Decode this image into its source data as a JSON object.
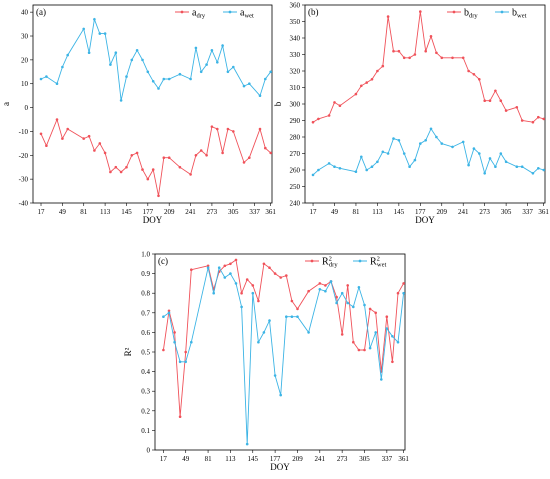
{
  "chart_data": [
    {
      "type": "line",
      "panel_label": "(a)",
      "xlabel": "DOY",
      "ylabel": "a",
      "xticks": [
        17,
        49,
        81,
        113,
        145,
        177,
        209,
        241,
        273,
        305,
        337,
        361
      ],
      "xlim": [
        5,
        363
      ],
      "yticks": [
        -40,
        -30,
        -20,
        -10,
        0,
        10,
        20,
        30,
        40
      ],
      "ylim": [
        -40,
        43
      ],
      "legend": {
        "position": "top-right",
        "entries": [
          {
            "base": "a",
            "sub": "dry"
          },
          {
            "base": "a",
            "sub": "wet"
          }
        ]
      },
      "series": [
        {
          "color": "#f0525a",
          "x": [
            17,
            25,
            41,
            49,
            57,
            81,
            89,
            97,
            105,
            113,
            121,
            129,
            137,
            145,
            153,
            161,
            169,
            177,
            185,
            193,
            201,
            209,
            225,
            241,
            249,
            257,
            265,
            273,
            281,
            289,
            297,
            305,
            321,
            329,
            345,
            353,
            361
          ],
          "y": [
            -11,
            -16,
            -5,
            -13,
            -9,
            -13,
            -12,
            -18,
            -15,
            -19,
            -27,
            -25,
            -27,
            -25,
            -20,
            -19,
            -26,
            -30,
            -26,
            -37,
            -21,
            -21,
            -25,
            -28,
            -20,
            -18,
            -20,
            -8,
            -9,
            -19,
            -9,
            -10,
            -23,
            -21,
            -9,
            -17,
            -19
          ]
        },
        {
          "color": "#3cb4e5",
          "x": [
            17,
            25,
            41,
            49,
            57,
            81,
            89,
            97,
            105,
            113,
            121,
            129,
            137,
            145,
            153,
            161,
            169,
            177,
            185,
            193,
            201,
            209,
            225,
            241,
            249,
            257,
            265,
            273,
            281,
            289,
            297,
            305,
            321,
            329,
            345,
            353,
            361
          ],
          "y": [
            12,
            13,
            10,
            17,
            22,
            33,
            23,
            37,
            31,
            31,
            18,
            23,
            3,
            13,
            20,
            24,
            20,
            15,
            11,
            8,
            12,
            12,
            14,
            12,
            25,
            15,
            18,
            24,
            19,
            26,
            15,
            17,
            9,
            10,
            5,
            12,
            15
          ]
        }
      ]
    },
    {
      "type": "line",
      "panel_label": "(b)",
      "xlabel": "DOY",
      "ylabel": "b",
      "xticks": [
        17,
        49,
        81,
        113,
        145,
        177,
        209,
        241,
        273,
        305,
        337,
        361
      ],
      "xlim": [
        5,
        363
      ],
      "yticks": [
        240,
        250,
        260,
        270,
        280,
        290,
        300,
        310,
        320,
        330,
        340,
        350,
        360
      ],
      "ylim": [
        240,
        360
      ],
      "legend": {
        "position": "top-right",
        "entries": [
          {
            "base": "b",
            "sub": "dry"
          },
          {
            "base": "b",
            "sub": "wet"
          }
        ]
      },
      "series": [
        {
          "color": "#f0525a",
          "x": [
            17,
            25,
            41,
            49,
            57,
            81,
            89,
            97,
            105,
            113,
            121,
            129,
            137,
            145,
            153,
            161,
            169,
            177,
            185,
            193,
            201,
            209,
            225,
            241,
            249,
            257,
            265,
            273,
            281,
            289,
            297,
            305,
            321,
            329,
            345,
            353,
            361
          ],
          "y": [
            289,
            291,
            293,
            301,
            299,
            306,
            311,
            313,
            315,
            320,
            323,
            353,
            332,
            332,
            328,
            328,
            330,
            356,
            332,
            341,
            331,
            328,
            328,
            328,
            320,
            318,
            315,
            302,
            302,
            308,
            302,
            296,
            298,
            290,
            289,
            292,
            291
          ]
        },
        {
          "color": "#3cb4e5",
          "x": [
            17,
            25,
            41,
            49,
            57,
            81,
            89,
            97,
            105,
            113,
            121,
            129,
            137,
            145,
            153,
            161,
            169,
            177,
            185,
            193,
            201,
            209,
            225,
            241,
            249,
            257,
            265,
            273,
            281,
            289,
            297,
            305,
            321,
            329,
            345,
            353,
            361
          ],
          "y": [
            257,
            260,
            264,
            262,
            261,
            259,
            268,
            260,
            262,
            265,
            271,
            270,
            279,
            278,
            270,
            262,
            266,
            276,
            278,
            285,
            280,
            276,
            274,
            277,
            263,
            273,
            270,
            258,
            267,
            262,
            270,
            265,
            262,
            262,
            258,
            261,
            260
          ]
        }
      ]
    },
    {
      "type": "line",
      "panel_label": "(c)",
      "xlabel": "DOY",
      "ylabel": "R²",
      "xticks": [
        17,
        49,
        81,
        113,
        145,
        177,
        209,
        241,
        273,
        305,
        337,
        361
      ],
      "xlim": [
        5,
        363
      ],
      "yticks": [
        0,
        0.1,
        0.2,
        0.3,
        0.4,
        0.5,
        0.6,
        0.7,
        0.8,
        0.9,
        1.0
      ],
      "ylim": [
        0,
        1.0
      ],
      "legend": {
        "position": "top-right",
        "entries": [
          {
            "base": "R",
            "sup": "2",
            "sub": "dry"
          },
          {
            "base": "R",
            "sup": "2",
            "sub": "wet"
          }
        ]
      },
      "series": [
        {
          "color": "#f0525a",
          "x": [
            17,
            25,
            33,
            41,
            49,
            57,
            81,
            89,
            97,
            105,
            113,
            121,
            129,
            137,
            145,
            153,
            161,
            169,
            177,
            185,
            193,
            201,
            209,
            225,
            241,
            249,
            257,
            265,
            273,
            281,
            289,
            297,
            305,
            313,
            321,
            329,
            337,
            345,
            353,
            361
          ],
          "y": [
            0.51,
            0.71,
            0.6,
            0.17,
            0.5,
            0.92,
            0.94,
            0.82,
            0.91,
            0.94,
            0.95,
            0.97,
            0.8,
            0.87,
            0.84,
            0.76,
            0.95,
            0.93,
            0.9,
            0.88,
            0.89,
            0.76,
            0.72,
            0.81,
            0.85,
            0.84,
            0.86,
            0.78,
            0.59,
            0.84,
            0.55,
            0.51,
            0.51,
            0.72,
            0.7,
            0.4,
            0.68,
            0.45,
            0.8,
            0.85
          ]
        },
        {
          "color": "#3cb4e5",
          "x": [
            17,
            25,
            33,
            41,
            49,
            57,
            81,
            89,
            97,
            105,
            113,
            121,
            129,
            137,
            145,
            153,
            161,
            169,
            177,
            185,
            193,
            201,
            209,
            225,
            241,
            249,
            257,
            265,
            273,
            281,
            289,
            297,
            305,
            313,
            321,
            329,
            337,
            345,
            353,
            361
          ],
          "y": [
            0.68,
            0.7,
            0.55,
            0.45,
            0.45,
            0.55,
            0.93,
            0.8,
            0.93,
            0.88,
            0.9,
            0.85,
            0.73,
            0.03,
            0.8,
            0.55,
            0.6,
            0.66,
            0.38,
            0.28,
            0.68,
            0.68,
            0.68,
            0.6,
            0.82,
            0.81,
            0.86,
            0.75,
            0.8,
            0.75,
            0.73,
            0.83,
            0.74,
            0.52,
            0.6,
            0.36,
            0.62,
            0.58,
            0.55,
            0.8
          ]
        }
      ]
    }
  ]
}
